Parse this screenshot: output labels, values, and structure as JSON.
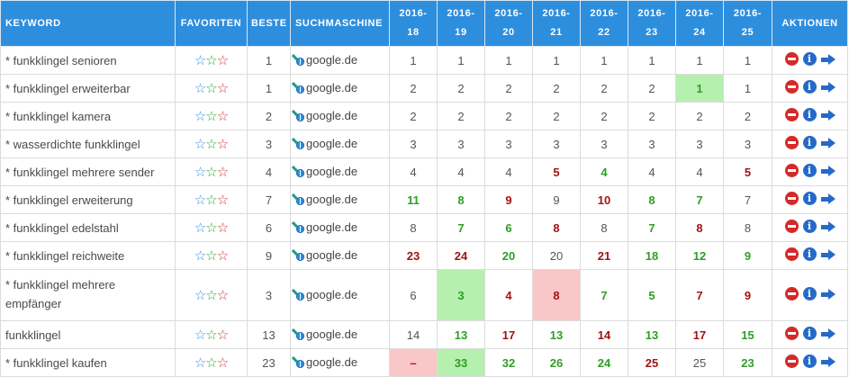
{
  "headers": {
    "keyword": "KEYWORD",
    "favoriten": "FAVORITEN",
    "beste": "BESTE",
    "suchmaschine": "SUCHMASCHINE",
    "weeks": [
      {
        "year": "2016-",
        "week": "18"
      },
      {
        "year": "2016-",
        "week": "19"
      },
      {
        "year": "2016-",
        "week": "20"
      },
      {
        "year": "2016-",
        "week": "21"
      },
      {
        "year": "2016-",
        "week": "22"
      },
      {
        "year": "2016-",
        "week": "23"
      },
      {
        "year": "2016-",
        "week": "24"
      },
      {
        "year": "2016-",
        "week": "25"
      }
    ],
    "aktionen": "AKTIONEN"
  },
  "icons": {
    "stars": [
      "star-blue",
      "star-green",
      "star-red"
    ],
    "engine": "google-globe-icon",
    "actions": [
      "delete-icon",
      "info-icon",
      "arrow-right-icon"
    ]
  },
  "colors": {
    "header_bg": "#2e8ede",
    "improved": "#2e9e26",
    "worsened": "#a11414",
    "best_highlight": "#b6f0ae",
    "worst_highlight": "#f9c7c7"
  },
  "rows": [
    {
      "keyword": "* funkklingel senioren",
      "best": "1",
      "engine": "google.de",
      "ranks": [
        {
          "v": "1",
          "c": "num"
        },
        {
          "v": "1",
          "c": "num"
        },
        {
          "v": "1",
          "c": "num"
        },
        {
          "v": "1",
          "c": "num"
        },
        {
          "v": "1",
          "c": "num"
        },
        {
          "v": "1",
          "c": "num"
        },
        {
          "v": "1",
          "c": "num"
        },
        {
          "v": "1",
          "c": "num"
        }
      ]
    },
    {
      "keyword": "* funkklingel erweiterbar",
      "best": "1",
      "engine": "google.de",
      "ranks": [
        {
          "v": "2",
          "c": "num"
        },
        {
          "v": "2",
          "c": "num"
        },
        {
          "v": "2",
          "c": "num"
        },
        {
          "v": "2",
          "c": "num"
        },
        {
          "v": "2",
          "c": "num"
        },
        {
          "v": "2",
          "c": "num"
        },
        {
          "v": "1",
          "c": "up best"
        },
        {
          "v": "1",
          "c": "num"
        }
      ]
    },
    {
      "keyword": "* funkklingel kamera",
      "best": "2",
      "engine": "google.de",
      "ranks": [
        {
          "v": "2",
          "c": "num"
        },
        {
          "v": "2",
          "c": "num"
        },
        {
          "v": "2",
          "c": "num"
        },
        {
          "v": "2",
          "c": "num"
        },
        {
          "v": "2",
          "c": "num"
        },
        {
          "v": "2",
          "c": "num"
        },
        {
          "v": "2",
          "c": "num"
        },
        {
          "v": "2",
          "c": "num"
        }
      ]
    },
    {
      "keyword": "* wasserdichte funkklingel",
      "best": "3",
      "engine": "google.de",
      "ranks": [
        {
          "v": "3",
          "c": "num"
        },
        {
          "v": "3",
          "c": "num"
        },
        {
          "v": "3",
          "c": "num"
        },
        {
          "v": "3",
          "c": "num"
        },
        {
          "v": "3",
          "c": "num"
        },
        {
          "v": "3",
          "c": "num"
        },
        {
          "v": "3",
          "c": "num"
        },
        {
          "v": "3",
          "c": "num"
        }
      ]
    },
    {
      "keyword": "* funkklingel mehrere sender",
      "best": "4",
      "engine": "google.de",
      "ranks": [
        {
          "v": "4",
          "c": "num"
        },
        {
          "v": "4",
          "c": "num"
        },
        {
          "v": "4",
          "c": "num"
        },
        {
          "v": "5",
          "c": "down"
        },
        {
          "v": "4",
          "c": "up"
        },
        {
          "v": "4",
          "c": "num"
        },
        {
          "v": "4",
          "c": "num"
        },
        {
          "v": "5",
          "c": "down"
        }
      ]
    },
    {
      "keyword": "* funkklingel erweiterung",
      "best": "7",
      "engine": "google.de",
      "ranks": [
        {
          "v": "11",
          "c": "up"
        },
        {
          "v": "8",
          "c": "up"
        },
        {
          "v": "9",
          "c": "down"
        },
        {
          "v": "9",
          "c": "num"
        },
        {
          "v": "10",
          "c": "down"
        },
        {
          "v": "8",
          "c": "up"
        },
        {
          "v": "7",
          "c": "up"
        },
        {
          "v": "7",
          "c": "num"
        }
      ]
    },
    {
      "keyword": "* funkklingel edelstahl",
      "best": "6",
      "engine": "google.de",
      "ranks": [
        {
          "v": "8",
          "c": "num"
        },
        {
          "v": "7",
          "c": "up"
        },
        {
          "v": "6",
          "c": "up"
        },
        {
          "v": "8",
          "c": "down"
        },
        {
          "v": "8",
          "c": "num"
        },
        {
          "v": "7",
          "c": "up"
        },
        {
          "v": "8",
          "c": "down"
        },
        {
          "v": "8",
          "c": "num"
        }
      ]
    },
    {
      "keyword": "* funkklingel reichweite",
      "best": "9",
      "engine": "google.de",
      "ranks": [
        {
          "v": "23",
          "c": "down"
        },
        {
          "v": "24",
          "c": "down"
        },
        {
          "v": "20",
          "c": "up"
        },
        {
          "v": "20",
          "c": "num"
        },
        {
          "v": "21",
          "c": "down"
        },
        {
          "v": "18",
          "c": "up"
        },
        {
          "v": "12",
          "c": "up"
        },
        {
          "v": "9",
          "c": "up"
        }
      ]
    },
    {
      "keyword": "* funkklingel mehrere empfänger",
      "best": "3",
      "engine": "google.de",
      "tall": true,
      "ranks": [
        {
          "v": "6",
          "c": "num"
        },
        {
          "v": "3",
          "c": "up best"
        },
        {
          "v": "4",
          "c": "down"
        },
        {
          "v": "8",
          "c": "down worst"
        },
        {
          "v": "7",
          "c": "up"
        },
        {
          "v": "5",
          "c": "up"
        },
        {
          "v": "7",
          "c": "down"
        },
        {
          "v": "9",
          "c": "down"
        }
      ]
    },
    {
      "keyword": "funkklingel",
      "best": "13",
      "engine": "google.de",
      "ranks": [
        {
          "v": "14",
          "c": "num"
        },
        {
          "v": "13",
          "c": "up"
        },
        {
          "v": "17",
          "c": "down"
        },
        {
          "v": "13",
          "c": "up"
        },
        {
          "v": "14",
          "c": "down"
        },
        {
          "v": "13",
          "c": "up"
        },
        {
          "v": "17",
          "c": "down"
        },
        {
          "v": "15",
          "c": "up"
        }
      ]
    },
    {
      "keyword": "* funkklingel kaufen",
      "best": "23",
      "engine": "google.de",
      "ranks": [
        {
          "v": "–",
          "c": "down worst"
        },
        {
          "v": "33",
          "c": "up best"
        },
        {
          "v": "32",
          "c": "up"
        },
        {
          "v": "26",
          "c": "up"
        },
        {
          "v": "24",
          "c": "up"
        },
        {
          "v": "25",
          "c": "down"
        },
        {
          "v": "25",
          "c": "num"
        },
        {
          "v": "23",
          "c": "up"
        }
      ]
    }
  ]
}
